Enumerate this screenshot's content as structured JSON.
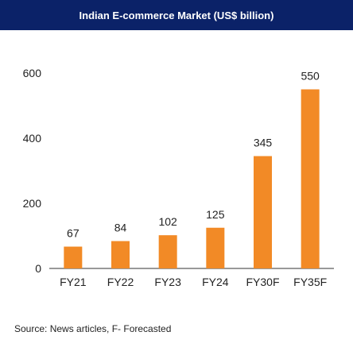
{
  "chart_data": {
    "type": "bar",
    "title": "Indian E-commerce Market (US$ billion)",
    "categories": [
      "FY21",
      "FY22",
      "FY23",
      "FY24",
      "FY30F",
      "FY35F"
    ],
    "values": [
      67,
      84,
      102,
      125,
      345,
      550
    ],
    "data_labels": [
      "67",
      "84",
      "102",
      "125",
      "345",
      "550"
    ],
    "yticks": [
      "0",
      "200",
      "400",
      "600"
    ],
    "ylim": [
      0,
      600
    ],
    "bar_color": "#f28a26",
    "grid": false,
    "legend": "none"
  },
  "footer": {
    "source": "Source: News articles, F- Forecasted"
  }
}
